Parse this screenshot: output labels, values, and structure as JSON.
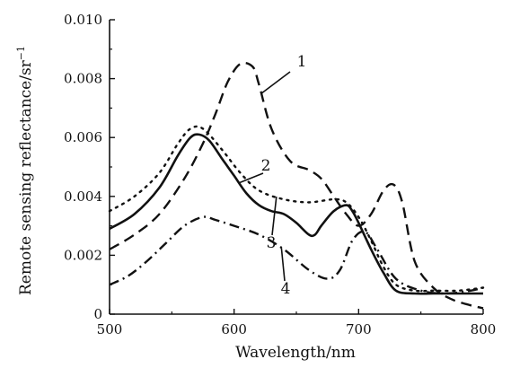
{
  "chart_data": {
    "type": "line",
    "xlabel": "Wavelength/nm",
    "ylabel": "Remote sensing reflectance/sr",
    "ylabel_superscript": "−1",
    "xlim": [
      500,
      800
    ],
    "ylim": [
      0,
      0.01
    ],
    "x_ticks": [
      "500",
      "600",
      "700",
      "800"
    ],
    "y_ticks": [
      "0",
      "0.002",
      "0.004",
      "0.006",
      "0.008",
      "0.010"
    ],
    "grid": false,
    "series": [
      {
        "name": "1",
        "style": "dashed",
        "x": [
          500,
          520,
          540,
          560,
          575,
          585,
          595,
          605,
          615,
          620,
          630,
          645,
          660,
          670,
          680,
          690,
          700,
          710,
          720,
          728,
          735,
          745,
          760,
          775,
          790,
          800
        ],
        "y": [
          0.0022,
          0.0027,
          0.0034,
          0.0046,
          0.0058,
          0.0068,
          0.0079,
          0.0085,
          0.0084,
          0.0078,
          0.0063,
          0.0052,
          0.0049,
          0.0046,
          0.004,
          0.0034,
          0.003,
          0.0034,
          0.0042,
          0.0044,
          0.0038,
          0.0018,
          0.0009,
          0.0005,
          0.0003,
          0.0002
        ]
      },
      {
        "name": "2",
        "style": "solid",
        "x": [
          500,
          520,
          540,
          555,
          565,
          572,
          580,
          590,
          600,
          610,
          620,
          630,
          640,
          650,
          660,
          665,
          670,
          680,
          690,
          695,
          700,
          710,
          720,
          730,
          745,
          760,
          780,
          800
        ],
        "y": [
          0.0029,
          0.0034,
          0.0043,
          0.0054,
          0.006,
          0.0061,
          0.0059,
          0.0053,
          0.0047,
          0.0041,
          0.0037,
          0.0035,
          0.0034,
          0.0031,
          0.0027,
          0.0027,
          0.003,
          0.0035,
          0.0037,
          0.0035,
          0.0031,
          0.0022,
          0.0014,
          0.0008,
          0.0007,
          0.0007,
          0.0007,
          0.0007
        ]
      },
      {
        "name": "3",
        "style": "dotted",
        "x": [
          500,
          520,
          540,
          555,
          565,
          575,
          590,
          605,
          620,
          640,
          660,
          680,
          690,
          700,
          710,
          720,
          730,
          745,
          760,
          780,
          800
        ],
        "y": [
          0.0035,
          0.004,
          0.0048,
          0.0058,
          0.0063,
          0.0063,
          0.0056,
          0.0048,
          0.0042,
          0.0039,
          0.0038,
          0.0039,
          0.0038,
          0.0033,
          0.0025,
          0.0016,
          0.001,
          0.0008,
          0.0008,
          0.0008,
          0.0009
        ]
      },
      {
        "name": "4",
        "style": "dashdot",
        "x": [
          500,
          515,
          530,
          545,
          560,
          575,
          585,
          600,
          620,
          640,
          660,
          675,
          685,
          695,
          705,
          715,
          730,
          750,
          770,
          790,
          800
        ],
        "y": [
          0.001,
          0.0013,
          0.0018,
          0.0024,
          0.003,
          0.0033,
          0.0032,
          0.003,
          0.0027,
          0.0022,
          0.0015,
          0.0012,
          0.0015,
          0.0025,
          0.0028,
          0.0022,
          0.0012,
          0.0008,
          0.0007,
          0.0008,
          0.0009
        ]
      }
    ],
    "annotations": [
      {
        "text": "1",
        "series": 0
      },
      {
        "text": "2",
        "series": 1
      },
      {
        "text": "3",
        "series": 2
      },
      {
        "text": "4",
        "series": 3
      }
    ]
  }
}
